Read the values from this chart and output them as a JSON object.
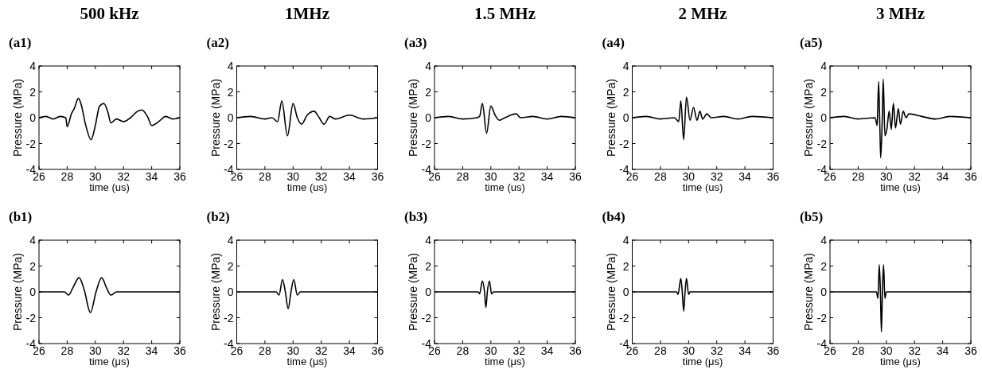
{
  "chart_data": [
    {
      "type": "line",
      "title": "500 kHz",
      "annotations": [
        "(a1)"
      ],
      "xlabel": "time (us)",
      "ylabel": "Pressure (MPa)",
      "xlim": [
        26,
        36
      ],
      "ylim": [
        -4,
        4
      ],
      "xticks": [
        26,
        28,
        30,
        32,
        34,
        36
      ],
      "yticks": [
        -4,
        -2,
        0,
        2,
        4
      ],
      "grid": false,
      "series": [
        {
          "color": "#000000",
          "x": [
            26,
            26.5,
            27,
            27.5,
            27.9,
            28,
            28.3,
            28.5,
            28.8,
            29,
            29.3,
            29.7,
            30,
            30.3,
            30.6,
            30.9,
            31.1,
            31.5,
            32,
            32.5,
            33,
            33.3,
            33.7,
            34,
            34.5,
            35,
            35.5,
            36
          ],
          "values": [
            0,
            0.1,
            -0.1,
            0.1,
            0,
            -0.7,
            0.3,
            0.7,
            1.5,
            1,
            -0.5,
            -1.7,
            -0.6,
            0.9,
            1.1,
            0.4,
            -0.4,
            -0.1,
            -0.3,
            0,
            0.5,
            0.6,
            0.1,
            -0.6,
            -0.3,
            0.1,
            -0.1,
            0
          ]
        }
      ]
    },
    {
      "type": "line",
      "title": "1MHz",
      "annotations": [
        "(a2)"
      ],
      "xlabel": "time (us)",
      "ylabel": "Pressure (MPa)",
      "xlim": [
        26,
        36
      ],
      "ylim": [
        -4,
        4
      ],
      "xticks": [
        26,
        28,
        30,
        32,
        34,
        36
      ],
      "yticks": [
        -4,
        -2,
        0,
        2,
        4
      ],
      "grid": false,
      "series": [
        {
          "color": "#000000",
          "x": [
            26,
            27,
            28,
            28.5,
            28.9,
            29.2,
            29.6,
            30,
            30.3,
            30.6,
            31,
            31.5,
            31.8,
            32.2,
            32.6,
            33,
            34,
            35,
            36
          ],
          "values": [
            0,
            0.1,
            -0.1,
            0,
            -0.3,
            1.3,
            -1.4,
            1.1,
            0,
            -0.5,
            0.2,
            0.5,
            0.1,
            -0.5,
            0.1,
            -0.1,
            0.2,
            -0.1,
            0
          ]
        }
      ]
    },
    {
      "type": "line",
      "title": "1.5 MHz",
      "annotations": [
        "(a3)"
      ],
      "xlabel": "time (us)",
      "ylabel": "Pressure (MPa)",
      "xlim": [
        26,
        36
      ],
      "ylim": [
        -4,
        4
      ],
      "xticks": [
        26,
        28,
        30,
        32,
        34,
        36
      ],
      "yticks": [
        -4,
        -2,
        0,
        2,
        4
      ],
      "grid": false,
      "series": [
        {
          "color": "#000000",
          "x": [
            26,
            27,
            28,
            29,
            29.2,
            29.4,
            29.7,
            30,
            30.3,
            30.6,
            31,
            31.8,
            32.1,
            33,
            34,
            35,
            36
          ],
          "values": [
            0,
            0.1,
            -0.1,
            0,
            0.1,
            1.1,
            -1.2,
            0.9,
            0.2,
            -0.2,
            0,
            0.3,
            0,
            0.1,
            -0.1,
            0.1,
            0
          ]
        }
      ]
    },
    {
      "type": "line",
      "title": "2 MHz",
      "annotations": [
        "(a4)"
      ],
      "xlabel": "time (us)",
      "ylabel": "Pressure (MPa)",
      "xlim": [
        26,
        36
      ],
      "ylim": [
        -4,
        4
      ],
      "xticks": [
        26,
        28,
        30,
        32,
        34,
        36
      ],
      "yticks": [
        -4,
        -2,
        0,
        2,
        4
      ],
      "grid": false,
      "series": [
        {
          "color": "#000000",
          "x": [
            26,
            27,
            28,
            29,
            29.3,
            29.45,
            29.65,
            29.85,
            30.1,
            30.35,
            30.6,
            30.8,
            31,
            31.3,
            31.6,
            32.5,
            33.5,
            34.5,
            36
          ],
          "values": [
            0,
            0.1,
            -0.1,
            0,
            -0.3,
            1.3,
            -1.7,
            1.6,
            -0.2,
            0.8,
            -0.2,
            0.5,
            -0.1,
            0.3,
            0,
            0.1,
            -0.1,
            0.1,
            0
          ]
        }
      ]
    },
    {
      "type": "line",
      "title": "3 MHz",
      "annotations": [
        "(a5)"
      ],
      "xlabel": "time (us)",
      "ylabel": "Pressure (MPa)",
      "xlim": [
        26,
        36
      ],
      "ylim": [
        -4,
        4
      ],
      "xticks": [
        26,
        28,
        30,
        32,
        34,
        36
      ],
      "yticks": [
        -4,
        -2,
        0,
        2,
        4
      ],
      "grid": false,
      "series": [
        {
          "color": "#000000",
          "x": [
            26,
            27,
            28,
            29.2,
            29.35,
            29.45,
            29.55,
            29.6,
            29.7,
            29.78,
            29.9,
            30.05,
            30.2,
            30.35,
            30.5,
            30.65,
            30.85,
            31,
            31.2,
            31.4,
            31.6,
            32.5,
            33.5,
            34.5,
            36
          ],
          "values": [
            0,
            0.1,
            -0.1,
            0,
            -0.6,
            2.8,
            -1.2,
            -3.1,
            -0.5,
            3,
            -1.4,
            -0.8,
            0.5,
            -0.9,
            1.1,
            -0.8,
            0.7,
            -0.5,
            0.5,
            0,
            0.3,
            0.1,
            -0.1,
            0.1,
            0
          ]
        }
      ]
    },
    {
      "type": "line",
      "annotations": [
        "(b1)"
      ],
      "xlabel": "time (μs)",
      "ylabel": "Pressure (MPa)",
      "xlim": [
        26,
        36
      ],
      "ylim": [
        -4,
        4
      ],
      "xticks": [
        26,
        28,
        30,
        32,
        34,
        36
      ],
      "yticks": [
        -4,
        -2,
        0,
        2,
        4
      ],
      "grid": false,
      "series": [
        {
          "color": "#000000",
          "x": [
            26,
            27.8,
            28.1,
            28.4,
            28.85,
            29.2,
            29.65,
            30.05,
            30.45,
            30.8,
            31.1,
            31.5,
            36
          ],
          "values": [
            0,
            0,
            -0.25,
            0.3,
            1.1,
            0.2,
            -1.6,
            0,
            1.1,
            0.3,
            -0.25,
            0,
            0
          ]
        }
      ]
    },
    {
      "type": "line",
      "annotations": [
        "(b2)"
      ],
      "xlabel": "time (μs)",
      "ylabel": "Pressure (MPa)",
      "xlim": [
        26,
        36
      ],
      "ylim": [
        -4,
        4
      ],
      "xticks": [
        26,
        28,
        30,
        32,
        34,
        36
      ],
      "yticks": [
        -4,
        -2,
        0,
        2,
        4
      ],
      "grid": false,
      "series": [
        {
          "color": "#000000",
          "x": [
            26,
            28.8,
            29,
            29.25,
            29.45,
            29.65,
            29.85,
            30.05,
            30.3,
            30.5,
            36
          ],
          "values": [
            0,
            0,
            -0.25,
            0.95,
            0,
            -1.3,
            0,
            0.95,
            -0.25,
            0,
            0
          ]
        }
      ]
    },
    {
      "type": "line",
      "annotations": [
        "(b3)"
      ],
      "xlabel": "time (μs)",
      "ylabel": "Pressure (MPa)",
      "xlim": [
        26,
        36
      ],
      "ylim": [
        -4,
        4
      ],
      "xticks": [
        26,
        28,
        30,
        32,
        34,
        36
      ],
      "yticks": [
        -4,
        -2,
        0,
        2,
        4
      ],
      "grid": false,
      "series": [
        {
          "color": "#000000",
          "x": [
            26,
            29.1,
            29.2,
            29.4,
            29.55,
            29.65,
            29.75,
            29.9,
            30.05,
            30.2,
            36
          ],
          "values": [
            0,
            0,
            -0.15,
            0.85,
            0,
            -1.2,
            0,
            0.85,
            -0.15,
            0,
            0
          ]
        }
      ]
    },
    {
      "type": "line",
      "annotations": [
        "(b4)"
      ],
      "xlabel": "time (μs)",
      "ylabel": "Pressure (MPa)",
      "xlim": [
        26,
        36
      ],
      "ylim": [
        -4,
        4
      ],
      "xticks": [
        26,
        28,
        30,
        32,
        34,
        36
      ],
      "yticks": [
        -4,
        -2,
        0,
        2,
        4
      ],
      "grid": false,
      "series": [
        {
          "color": "#000000",
          "x": [
            26,
            29.15,
            29.25,
            29.45,
            29.55,
            29.65,
            29.75,
            29.85,
            30,
            30.1,
            36
          ],
          "values": [
            0,
            0,
            -0.2,
            1.05,
            0,
            -1.5,
            0,
            1.05,
            -0.2,
            0,
            0
          ]
        }
      ]
    },
    {
      "type": "line",
      "annotations": [
        "(b5)"
      ],
      "xlabel": "time (μs)",
      "ylabel": "Pressure (MPa)",
      "xlim": [
        26,
        36
      ],
      "ylim": [
        -4,
        4
      ],
      "xticks": [
        26,
        28,
        30,
        32,
        34,
        36
      ],
      "yticks": [
        -4,
        -2,
        0,
        2,
        4
      ],
      "grid": false,
      "series": [
        {
          "color": "#000000",
          "x": [
            26,
            29.3,
            29.4,
            29.5,
            29.58,
            29.65,
            29.72,
            29.8,
            29.9,
            30,
            36
          ],
          "values": [
            0,
            0,
            -0.5,
            2.1,
            0,
            -3.1,
            0,
            2.1,
            -0.5,
            0,
            0
          ]
        }
      ]
    }
  ]
}
